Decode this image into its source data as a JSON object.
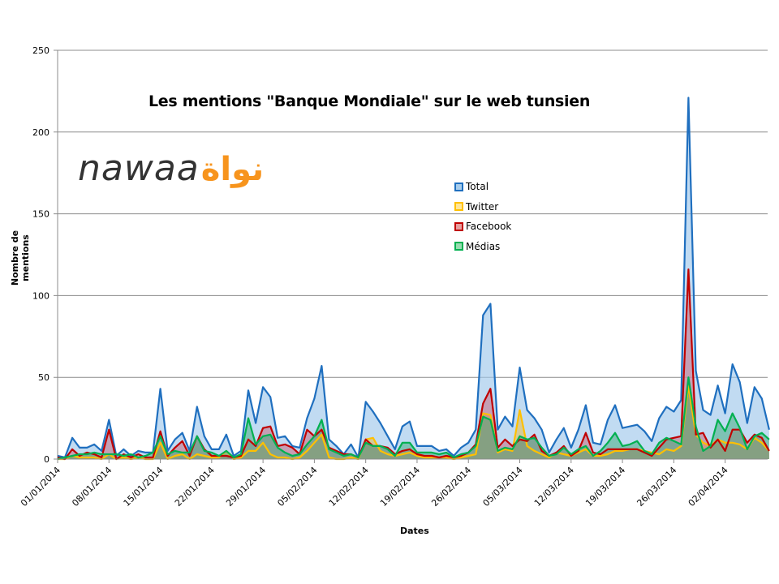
{
  "chart_data": {
    "type": "area",
    "title": "Les mentions \"Banque Mondiale\" sur le web tunsien",
    "xlabel": "Dates",
    "ylabel": "Nombre de mentions",
    "ylim": [
      0,
      250
    ],
    "yticks": [
      0,
      50,
      100,
      150,
      200,
      250
    ],
    "grid": "horizontal",
    "legend_position": "inside-center",
    "x_start": "01/01/2014",
    "x_end": "08/04/2014",
    "xtick_labels": [
      "01/01/2014",
      "08/01/2014",
      "15/01/2014",
      "22/01/2014",
      "29/01/2014",
      "05/02/2014",
      "12/02/2014",
      "19/02/2014",
      "26/02/2014",
      "05/03/2014",
      "12/03/2014",
      "19/03/2014",
      "26/03/2014",
      "02/04/2014"
    ],
    "series": [
      {
        "name": "Total",
        "color": "#1f6fbf",
        "fill": "#c5dcf0",
        "values": [
          2,
          1,
          13,
          7,
          7,
          9,
          5,
          24,
          2,
          6,
          2,
          5,
          4,
          4,
          43,
          5,
          12,
          16,
          5,
          32,
          14,
          6,
          6,
          15,
          2,
          5,
          42,
          22,
          44,
          38,
          13,
          14,
          8,
          7,
          25,
          37,
          57,
          12,
          8,
          3,
          9,
          1,
          35,
          29,
          22,
          14,
          6,
          20,
          23,
          8,
          8,
          8,
          5,
          6,
          2,
          7,
          10,
          18,
          88,
          95,
          18,
          26,
          20,
          56,
          30,
          25,
          18,
          4,
          12,
          19,
          7,
          18,
          33,
          10,
          9,
          24,
          33,
          19,
          20,
          21,
          17,
          11,
          25,
          32,
          29,
          36,
          221,
          54,
          30,
          27,
          45,
          28,
          58,
          47,
          22,
          44,
          37,
          18
        ]
      },
      {
        "name": "Twitter",
        "color": "#ffc000",
        "fill": "#e8c860",
        "values": [
          0,
          0,
          2,
          1,
          1,
          1,
          0,
          3,
          0,
          1,
          0,
          1,
          0,
          0,
          10,
          0,
          2,
          3,
          0,
          3,
          2,
          1,
          1,
          5,
          0,
          1,
          5,
          5,
          10,
          3,
          1,
          1,
          0,
          1,
          5,
          10,
          15,
          1,
          0,
          0,
          1,
          0,
          12,
          13,
          5,
          3,
          2,
          3,
          4,
          2,
          1,
          1,
          1,
          1,
          0,
          1,
          2,
          3,
          28,
          27,
          4,
          6,
          5,
          30,
          8,
          5,
          3,
          1,
          4,
          3,
          2,
          4,
          6,
          2,
          2,
          3,
          5,
          5,
          6,
          6,
          5,
          4,
          3,
          6,
          5,
          8,
          45,
          15,
          10,
          8,
          12,
          10,
          10,
          9,
          6,
          13,
          10,
          5
        ]
      },
      {
        "name": "Facebook",
        "color": "#c00000",
        "fill": "#d8a0a8",
        "values": [
          1,
          0,
          6,
          2,
          4,
          3,
          1,
          18,
          0,
          3,
          1,
          3,
          1,
          1,
          17,
          2,
          7,
          11,
          2,
          14,
          6,
          2,
          2,
          2,
          1,
          2,
          12,
          8,
          19,
          20,
          8,
          9,
          7,
          3,
          18,
          14,
          18,
          7,
          5,
          3,
          3,
          1,
          12,
          8,
          8,
          7,
          3,
          5,
          6,
          3,
          2,
          2,
          1,
          2,
          1,
          2,
          4,
          9,
          34,
          43,
          7,
          12,
          8,
          12,
          11,
          15,
          5,
          2,
          4,
          8,
          2,
          5,
          16,
          4,
          3,
          6,
          6,
          6,
          6,
          6,
          4,
          2,
          7,
          12,
          13,
          14,
          116,
          15,
          16,
          7,
          12,
          5,
          18,
          18,
          10,
          15,
          13,
          5
        ]
      },
      {
        "name": "Médias",
        "color": "#00b050",
        "fill": "#80c8a0",
        "values": [
          0,
          1,
          2,
          3,
          3,
          4,
          3,
          3,
          3,
          2,
          3,
          1,
          2,
          4,
          14,
          3,
          5,
          4,
          4,
          14,
          5,
          4,
          2,
          5,
          1,
          3,
          25,
          9,
          14,
          15,
          7,
          4,
          2,
          3,
          9,
          14,
          24,
          6,
          4,
          2,
          3,
          1,
          10,
          8,
          8,
          6,
          2,
          10,
          10,
          4,
          4,
          4,
          3,
          4,
          1,
          3,
          4,
          8,
          26,
          24,
          5,
          7,
          6,
          14,
          12,
          13,
          7,
          2,
          3,
          7,
          3,
          6,
          8,
          2,
          5,
          10,
          16,
          8,
          9,
          11,
          5,
          3,
          10,
          13,
          11,
          9,
          50,
          20,
          5,
          8,
          24,
          17,
          28,
          19,
          6,
          14,
          16,
          12
        ]
      }
    ]
  },
  "chart": {
    "title": "Les mentions \"Banque Mondiale\" sur le web tunsien",
    "xlabel": "Dates",
    "ylabel": "Nombre de mentions"
  },
  "logo": {
    "latin": "nawaa",
    "arabic": "نواة"
  },
  "legend": [
    {
      "label": "Total",
      "color": "#1f6fbf",
      "fill": "#a8cdec"
    },
    {
      "label": "Twitter",
      "color": "#ffc000",
      "fill": "#ffe699"
    },
    {
      "label": "Facebook",
      "color": "#c00000",
      "fill": "#e6a0a0"
    },
    {
      "label": "Médias",
      "color": "#00b050",
      "fill": "#99dcb0"
    }
  ]
}
